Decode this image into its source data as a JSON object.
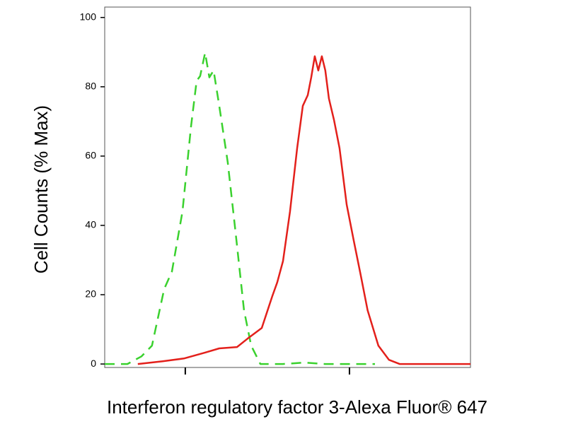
{
  "chart_data": {
    "type": "line",
    "xlabel": "Interferon regulatory factor 3-Alexa Fluor® 647",
    "ylabel": "Cell Counts (% Max)",
    "xscale": "log",
    "xlim": [
      323,
      54600
    ],
    "xticks": [
      {
        "value": 1000,
        "label": null
      },
      {
        "value": 10000,
        "label": null
      }
    ],
    "ylim": [
      -1,
      103
    ],
    "yticks": [
      0,
      20,
      40,
      60,
      80,
      100
    ],
    "series": [
      {
        "color": "#3ad12e",
        "dash": true,
        "x": [
          323,
          444,
          541,
          627,
          743,
          829,
          961,
          1083,
          1172,
          1232,
          1321,
          1402,
          1487,
          1610,
          1814,
          2025,
          2279,
          2520,
          2866,
          3936,
          5300,
          7130,
          9620,
          14300
        ],
        "values": [
          0,
          0,
          2.2,
          5.3,
          21.6,
          26.7,
          44,
          68.4,
          81.7,
          83.1,
          89.8,
          82.7,
          84.7,
          74.5,
          58.2,
          37.9,
          15.5,
          5.3,
          0,
          0,
          0.4,
          0,
          0,
          0
        ]
      },
      {
        "color": "#e3201b",
        "dash": false,
        "x": [
          514,
          728,
          980,
          1321,
          1610,
          2065,
          2393,
          2924,
          3388,
          3632,
          3936,
          4345,
          4800,
          5200,
          5570,
          5850,
          6150,
          6460,
          6790,
          7130,
          7500,
          8040,
          8700,
          9620,
          10600,
          11700,
          12900,
          15000,
          17400,
          20200,
          28600,
          54600
        ],
        "values": [
          0,
          0.8,
          1.6,
          3.3,
          4.5,
          4.9,
          7.3,
          10.4,
          19.6,
          23.6,
          29.7,
          44,
          62.3,
          74.5,
          77.6,
          82.7,
          88.8,
          84.7,
          88.8,
          84.7,
          76.6,
          70.5,
          62.3,
          46,
          35.8,
          25.7,
          15.5,
          5.3,
          1.2,
          0,
          0,
          0
        ]
      }
    ]
  }
}
